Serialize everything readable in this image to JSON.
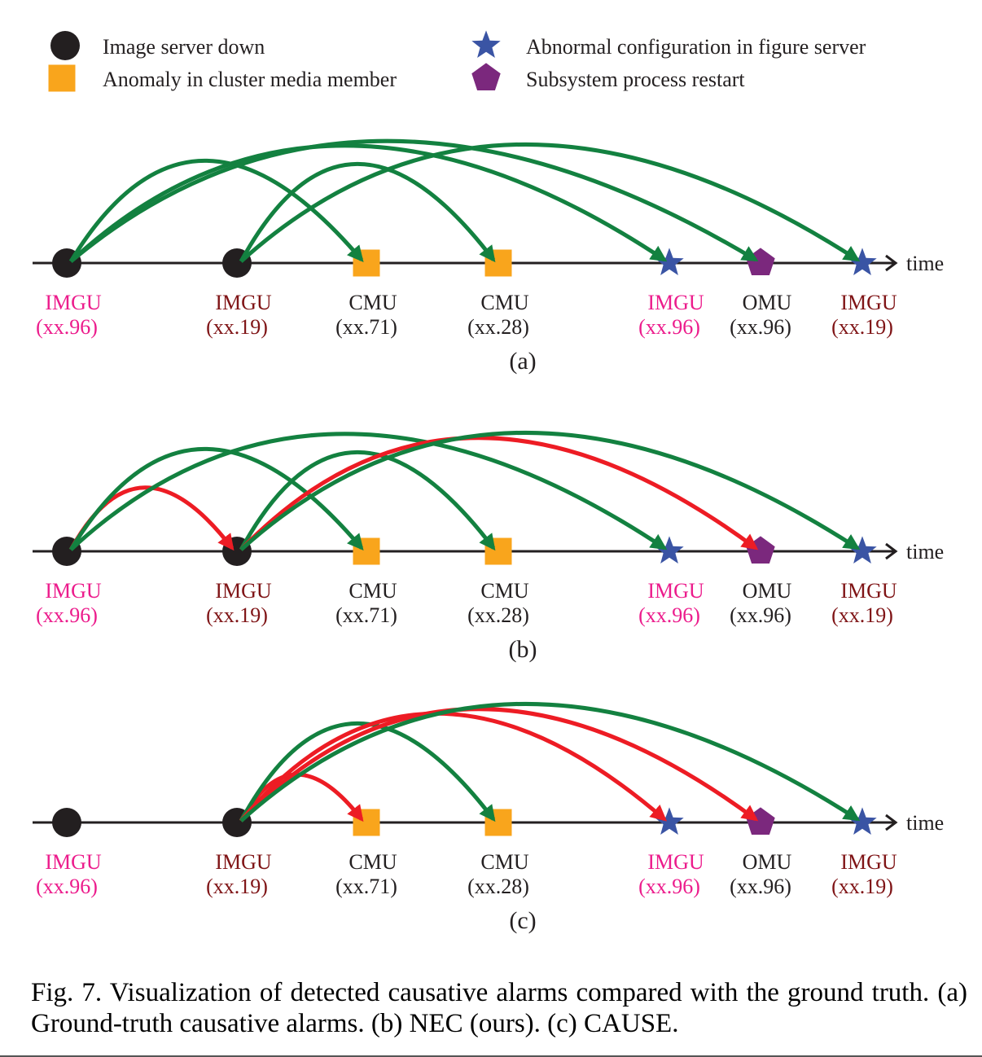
{
  "legend": [
    {
      "marker": "circle",
      "color": "#231f20",
      "label": "Image server down"
    },
    {
      "marker": "square",
      "color": "#f9a51c",
      "label": "Anomaly in cluster media member"
    },
    {
      "marker": "star",
      "color": "#3a54a4",
      "label": "Abnormal configuration in figure server"
    },
    {
      "marker": "pentagon",
      "color": "#7b287d",
      "label": "Subsystem process restart"
    }
  ],
  "colors": {
    "correct_edge": "#138140",
    "wrong_edge": "#ed1c24",
    "axis": "#231f20",
    "label_pink": "#ec1c8c",
    "label_darkred": "#7f1416",
    "label_black": "#231f20"
  },
  "axis_label": "time",
  "nodes": [
    {
      "name": "IMGU",
      "id": "(xx.96)",
      "marker": "circle",
      "label_color": "label_pink"
    },
    {
      "name": "IMGU",
      "id": "(xx.19)",
      "marker": "circle",
      "label_color": "label_darkred"
    },
    {
      "name": "CMU",
      "id": "(xx.71)",
      "marker": "square",
      "label_color": "label_black"
    },
    {
      "name": "CMU",
      "id": "(xx.28)",
      "marker": "square",
      "label_color": "label_black"
    },
    {
      "name": "IMGU",
      "id": "(xx.96)",
      "marker": "star",
      "label_color": "label_pink"
    },
    {
      "name": "OMU",
      "id": "(xx.96)",
      "marker": "pentagon",
      "label_color": "label_black"
    },
    {
      "name": "IMGU",
      "id": "(xx.19)",
      "marker": "star",
      "label_color": "label_darkred"
    }
  ],
  "panels": [
    {
      "label": "(a)",
      "edges": [
        {
          "from": 0,
          "to": 2,
          "type": "correct"
        },
        {
          "from": 0,
          "to": 4,
          "type": "correct"
        },
        {
          "from": 0,
          "to": 5,
          "type": "correct"
        },
        {
          "from": 1,
          "to": 3,
          "type": "correct"
        },
        {
          "from": 1,
          "to": 6,
          "type": "correct"
        }
      ]
    },
    {
      "label": "(b)",
      "edges": [
        {
          "from": 0,
          "to": 1,
          "type": "wrong"
        },
        {
          "from": 0,
          "to": 2,
          "type": "correct"
        },
        {
          "from": 0,
          "to": 4,
          "type": "correct"
        },
        {
          "from": 1,
          "to": 3,
          "type": "correct"
        },
        {
          "from": 1,
          "to": 5,
          "type": "wrong"
        },
        {
          "from": 1,
          "to": 6,
          "type": "correct"
        }
      ]
    },
    {
      "label": "(c)",
      "edges": [
        {
          "from": 1,
          "to": 2,
          "type": "wrong"
        },
        {
          "from": 1,
          "to": 3,
          "type": "correct"
        },
        {
          "from": 1,
          "to": 4,
          "type": "wrong"
        },
        {
          "from": 1,
          "to": 5,
          "type": "wrong"
        },
        {
          "from": 1,
          "to": 6,
          "type": "correct"
        }
      ]
    }
  ],
  "caption": "Fig. 7.  Visualization of detected causative alarms compared with the ground truth. (a) Ground-truth causative alarms. (b) NEC (ours). (c) CAUSE."
}
